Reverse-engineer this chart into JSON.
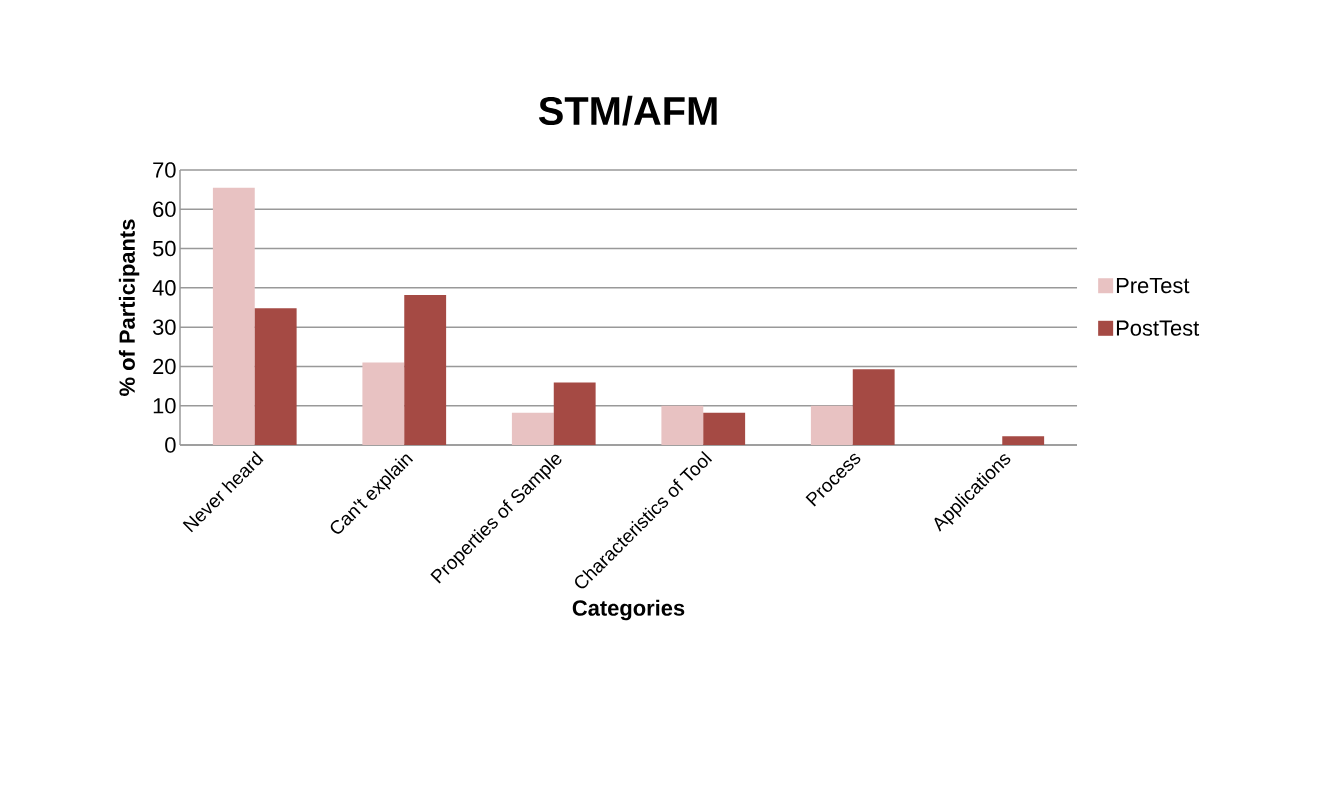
{
  "chart_data": {
    "type": "bar",
    "title": "STM/AFM",
    "xlabel": "Categories",
    "ylabel": "% of Participants",
    "categories": [
      "Never heard",
      "Can't explain",
      "Properties of Sample",
      "Characteristics of Tool",
      "Process",
      "Applications"
    ],
    "series": [
      {
        "name": "PreTest",
        "color": "#e8c2c2",
        "values": [
          65.5,
          21,
          8.2,
          10,
          10,
          0
        ]
      },
      {
        "name": "PostTest",
        "color": "#a54a44",
        "values": [
          34.8,
          38.2,
          15.9,
          8.2,
          19.3,
          2.2
        ]
      }
    ],
    "ylim": [
      0,
      70
    ],
    "yticks": [
      0,
      10,
      20,
      30,
      40,
      50,
      60,
      70
    ],
    "grid": "y",
    "legend": "right"
  }
}
